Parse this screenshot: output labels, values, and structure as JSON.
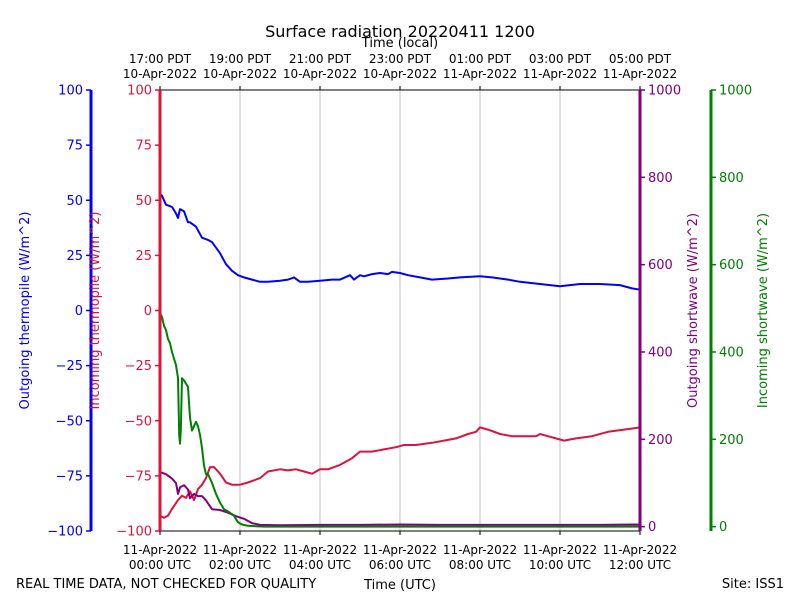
{
  "chart_data": {
    "type": "line",
    "title": "Surface radiation 20220411 1200",
    "top_axis_label": "Time (local)",
    "xlabel": "Time (UTC)",
    "footer_left": "REAL TIME DATA, NOT CHECKED FOR QUALITY",
    "footer_right": "Site: ISS1",
    "x_unit": "hours since 11-Apr-2022 00:00 UTC",
    "xlim": [
      0,
      12
    ],
    "bottom_ticks": [
      {
        "x": 0,
        "line1": "11-Apr-2022",
        "line2": "00:00 UTC"
      },
      {
        "x": 2,
        "line1": "11-Apr-2022",
        "line2": "02:00 UTC"
      },
      {
        "x": 4,
        "line1": "11-Apr-2022",
        "line2": "04:00 UTC"
      },
      {
        "x": 6,
        "line1": "11-Apr-2022",
        "line2": "06:00 UTC"
      },
      {
        "x": 8,
        "line1": "11-Apr-2022",
        "line2": "08:00 UTC"
      },
      {
        "x": 10,
        "line1": "11-Apr-2022",
        "line2": "10:00 UTC"
      },
      {
        "x": 12,
        "line1": "11-Apr-2022",
        "line2": "12:00 UTC"
      }
    ],
    "top_ticks": [
      {
        "x": 0,
        "line1": "17:00 PDT",
        "line2": "10-Apr-2022"
      },
      {
        "x": 2,
        "line1": "19:00 PDT",
        "line2": "10-Apr-2022"
      },
      {
        "x": 4,
        "line1": "21:00 PDT",
        "line2": "10-Apr-2022"
      },
      {
        "x": 6,
        "line1": "23:00 PDT",
        "line2": "10-Apr-2022"
      },
      {
        "x": 8,
        "line1": "01:00 PDT",
        "line2": "11-Apr-2022"
      },
      {
        "x": 10,
        "line1": "03:00 PDT",
        "line2": "11-Apr-2022"
      },
      {
        "x": 12,
        "line1": "05:00 PDT",
        "line2": "11-Apr-2022"
      }
    ],
    "axes": [
      {
        "id": "outgoing-thermopile",
        "label": "Outgoing thermopile (W/m^2)",
        "color": "#0000ff",
        "side": "left-outer",
        "range": [
          -100,
          100
        ],
        "ticks": [
          -100,
          -75,
          -50,
          -25,
          0,
          25,
          50,
          75,
          100
        ]
      },
      {
        "id": "incoming-thermopile",
        "label": "Incoming thermopile (W/m^2)",
        "color": "#dc143c",
        "side": "left-inner",
        "range": [
          -100,
          100
        ],
        "ticks": [
          -100,
          -75,
          -50,
          -25,
          0,
          25,
          50,
          75,
          100
        ]
      },
      {
        "id": "outgoing-shortwave",
        "label": "Outgoing shortwave (W/m^2)",
        "color": "#800080",
        "side": "right-inner",
        "range": [
          -10,
          1000
        ],
        "ticks": [
          0,
          200,
          400,
          600,
          800,
          1000
        ]
      },
      {
        "id": "incoming-shortwave",
        "label": "Incoming shortwave (W/m^2)",
        "color": "#008000",
        "side": "right-outer",
        "range": [
          -10,
          1000
        ],
        "ticks": [
          0,
          200,
          400,
          600,
          800,
          1000
        ]
      }
    ],
    "series": [
      {
        "name": "Outgoing thermopile",
        "axis": "outgoing-thermopile",
        "color": "#0000ff",
        "x": [
          0,
          0.05,
          0.15,
          0.3,
          0.4,
          0.45,
          0.5,
          0.6,
          0.7,
          0.75,
          0.9,
          1.05,
          1.2,
          1.3,
          1.5,
          1.65,
          1.8,
          1.95,
          2.1,
          2.3,
          2.5,
          2.7,
          3.0,
          3.2,
          3.35,
          3.5,
          3.7,
          4.0,
          4.3,
          4.5,
          4.75,
          4.85,
          5.0,
          5.1,
          5.3,
          5.5,
          5.7,
          5.8,
          6.0,
          6.2,
          6.5,
          6.8,
          7.2,
          7.5,
          8.0,
          8.3,
          8.7,
          9.0,
          9.5,
          10.0,
          10.5,
          11.0,
          11.5,
          11.8,
          12.0
        ],
        "y": [
          53,
          52,
          48,
          47,
          44,
          42,
          46,
          45,
          40,
          40,
          38,
          33,
          32,
          31,
          26,
          21,
          18,
          16,
          15,
          14,
          13,
          13,
          13.5,
          14,
          15,
          13,
          13,
          13.5,
          14,
          14,
          16,
          14,
          16,
          15.5,
          16.5,
          17,
          16.5,
          17.5,
          17,
          16,
          15,
          14,
          14.5,
          15,
          15.5,
          15,
          14,
          13,
          12,
          11,
          12,
          12,
          11.5,
          10,
          9.5
        ]
      },
      {
        "name": "Incoming thermopile",
        "axis": "incoming-thermopile",
        "color": "#dc143c",
        "x": [
          0,
          0.1,
          0.2,
          0.3,
          0.45,
          0.55,
          0.65,
          0.75,
          0.85,
          0.95,
          1.05,
          1.15,
          1.25,
          1.35,
          1.5,
          1.65,
          1.8,
          2.0,
          2.2,
          2.5,
          2.7,
          3.0,
          3.2,
          3.4,
          3.6,
          3.8,
          4.0,
          4.2,
          4.5,
          4.8,
          5.0,
          5.3,
          5.6,
          5.9,
          6.1,
          6.4,
          6.8,
          7.1,
          7.4,
          7.7,
          7.9,
          8.0,
          8.2,
          8.5,
          8.8,
          9.1,
          9.4,
          9.5,
          9.7,
          9.9,
          10.1,
          10.4,
          10.8,
          11.2,
          11.6,
          12.0
        ],
        "y": [
          -93,
          -94,
          -93,
          -90,
          -86,
          -84,
          -85,
          -82,
          -86,
          -81,
          -79,
          -76,
          -71,
          -71,
          -74,
          -78,
          -79,
          -79,
          -78,
          -76,
          -73,
          -72,
          -72.5,
          -72,
          -73,
          -74,
          -72,
          -72,
          -70,
          -67,
          -64,
          -64,
          -63,
          -62,
          -61,
          -61,
          -60,
          -59,
          -58,
          -56,
          -55,
          -53,
          -54,
          -56,
          -57,
          -57,
          -57,
          -56,
          -57,
          -58,
          -59,
          -58,
          -57,
          -55,
          -54,
          -53
        ]
      },
      {
        "name": "Outgoing shortwave",
        "axis": "outgoing-shortwave",
        "color": "#800080",
        "x": [
          0,
          0.15,
          0.3,
          0.4,
          0.45,
          0.5,
          0.6,
          0.7,
          0.75,
          0.85,
          0.95,
          1.05,
          1.15,
          1.3,
          1.5,
          1.7,
          1.9,
          2.1,
          2.3,
          2.5,
          3.0,
          4.0,
          5.0,
          6.0,
          7.0,
          8.0,
          9.0,
          10.0,
          11.0,
          12.0
        ],
        "y": [
          125,
          120,
          110,
          100,
          75,
          90,
          95,
          85,
          65,
          75,
          70,
          70,
          60,
          40,
          38,
          32,
          24,
          18,
          8,
          4,
          3,
          4,
          4,
          5,
          4,
          4,
          4,
          4,
          4,
          5
        ]
      },
      {
        "name": "Incoming shortwave",
        "axis": "incoming-shortwave",
        "color": "#008000",
        "x": [
          0,
          0.05,
          0.1,
          0.15,
          0.2,
          0.25,
          0.3,
          0.35,
          0.4,
          0.45,
          0.48,
          0.5,
          0.52,
          0.55,
          0.6,
          0.7,
          0.75,
          0.8,
          0.85,
          0.9,
          0.95,
          1.0,
          1.05,
          1.1,
          1.15,
          1.2,
          1.25,
          1.3,
          1.4,
          1.5,
          1.6,
          1.7,
          1.85,
          1.95,
          2.05,
          2.2,
          2.4,
          2.6,
          3.0,
          4.0,
          5.0,
          6.0,
          7.0,
          8.0,
          9.0,
          10.0,
          11.0,
          12.0
        ],
        "y": [
          490,
          480,
          460,
          450,
          430,
          420,
          400,
          385,
          370,
          340,
          210,
          190,
          220,
          340,
          335,
          320,
          250,
          220,
          230,
          240,
          230,
          210,
          180,
          140,
          120,
          120,
          110,
          100,
          75,
          55,
          40,
          35,
          25,
          10,
          5,
          2,
          1,
          0,
          0,
          0,
          0,
          0,
          0,
          0,
          0,
          0,
          0,
          0
        ]
      }
    ]
  }
}
